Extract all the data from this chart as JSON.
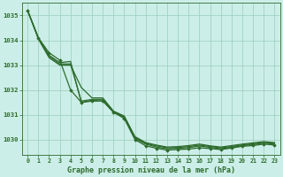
{
  "title": "Graphe pression niveau de la mer (hPa)",
  "background_color": "#cceee8",
  "grid_color": "#99ccbb",
  "line_color": "#2d6b2d",
  "xlim": [
    -0.5,
    23.5
  ],
  "ylim": [
    1029.4,
    1035.5
  ],
  "yticks": [
    1030,
    1031,
    1032,
    1033,
    1034,
    1035
  ],
  "xticks": [
    0,
    1,
    2,
    3,
    4,
    5,
    6,
    7,
    8,
    9,
    10,
    11,
    12,
    13,
    14,
    15,
    16,
    17,
    18,
    19,
    20,
    21,
    22,
    23
  ],
  "series": [
    {
      "y": [
        1035.2,
        1034.1,
        1033.5,
        1033.2,
        1032.0,
        1031.5,
        1031.55,
        1031.55,
        1031.1,
        1030.85,
        1030.0,
        1029.75,
        1029.65,
        1029.58,
        1029.6,
        1029.62,
        1029.67,
        1029.64,
        1029.6,
        1029.66,
        1029.73,
        1029.76,
        1029.82,
        1029.78
      ],
      "has_markers": true
    },
    {
      "y": [
        1035.2,
        1034.1,
        1033.4,
        1033.1,
        1033.15,
        1031.5,
        1031.58,
        1031.6,
        1031.1,
        1030.9,
        1030.05,
        1029.82,
        1029.7,
        1029.63,
        1029.65,
        1029.68,
        1029.74,
        1029.69,
        1029.63,
        1029.69,
        1029.76,
        1029.8,
        1029.86,
        1029.82
      ],
      "has_markers": false
    },
    {
      "y": [
        1035.2,
        1034.1,
        1033.35,
        1033.05,
        1033.05,
        1031.55,
        1031.62,
        1031.62,
        1031.12,
        1030.92,
        1030.08,
        1029.85,
        1029.75,
        1029.67,
        1029.68,
        1029.72,
        1029.78,
        1029.72,
        1029.67,
        1029.72,
        1029.79,
        1029.83,
        1029.89,
        1029.85
      ],
      "has_markers": false
    },
    {
      "y": [
        1035.2,
        1034.05,
        1033.3,
        1033.0,
        1033.0,
        1032.1,
        1031.68,
        1031.68,
        1031.15,
        1030.95,
        1030.12,
        1029.88,
        1029.78,
        1029.7,
        1029.72,
        1029.76,
        1029.82,
        1029.75,
        1029.7,
        1029.76,
        1029.82,
        1029.87,
        1029.92,
        1029.88
      ],
      "has_markers": false
    }
  ]
}
